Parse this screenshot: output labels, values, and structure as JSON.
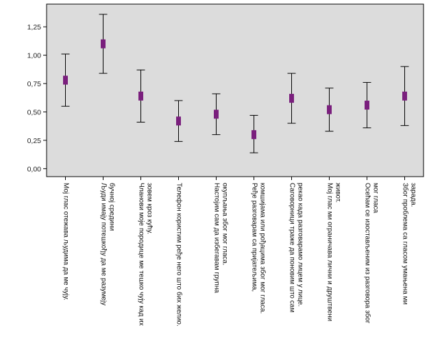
{
  "chart_data": {
    "type": "scatter",
    "subtype": "error-bar",
    "ylim": [
      -0.07,
      1.45
    ],
    "yticks": [
      "0,00",
      "0,25",
      "0,50",
      "0,75",
      "1,00",
      "1,25"
    ],
    "ytick_values": [
      0,
      0.25,
      0.5,
      0.75,
      1.0,
      1.25
    ],
    "grid": false,
    "colors": {
      "plot_bg": "#dcdcdc",
      "marker": "#7a1f7d",
      "whisker": "#000000",
      "axis": "#000000"
    },
    "categories": [
      [
        "Мој глас отежава људима  да ме чују."
      ],
      [
        "Људи имају потешкођу да ме разумеју",
        "бучној      средини"
      ],
      [
        "Чланови моје породице ме тешко чују кад их",
        "зовем кроз кућу."
      ],
      [
        "Телефон користим ређе него што бих желио."
      ],
      [
        "Настојим сам да избегавам групна",
        "окупљања због мог   гласа."
      ],
      [
        "Ређе разговарам са  пријатељима,",
        "комшијама   или рођацима због мог   гласа."
      ],
      [
        "Саговорници траже да поновим што сам",
        "рекао када разговарамо лицем у лице."
      ],
      [
        "Мој глас ми ограничава лични и друштвени",
        "живот."
      ],
      [
        "Осећам се изостављеним из разговора због",
        "мог    гласа"
      ],
      [
        "Због проблема са гласом умањена ми",
        "зарада."
      ]
    ],
    "series": [
      {
        "mean": [
          0.78,
          1.1,
          0.64,
          0.42,
          0.48,
          0.3,
          0.62,
          0.52,
          0.56,
          0.64
        ],
        "upper": [
          1.01,
          1.36,
          0.87,
          0.6,
          0.66,
          0.47,
          0.84,
          0.71,
          0.76,
          0.9
        ],
        "lower": [
          0.55,
          0.84,
          0.41,
          0.24,
          0.3,
          0.14,
          0.4,
          0.33,
          0.36,
          0.38
        ]
      }
    ]
  }
}
